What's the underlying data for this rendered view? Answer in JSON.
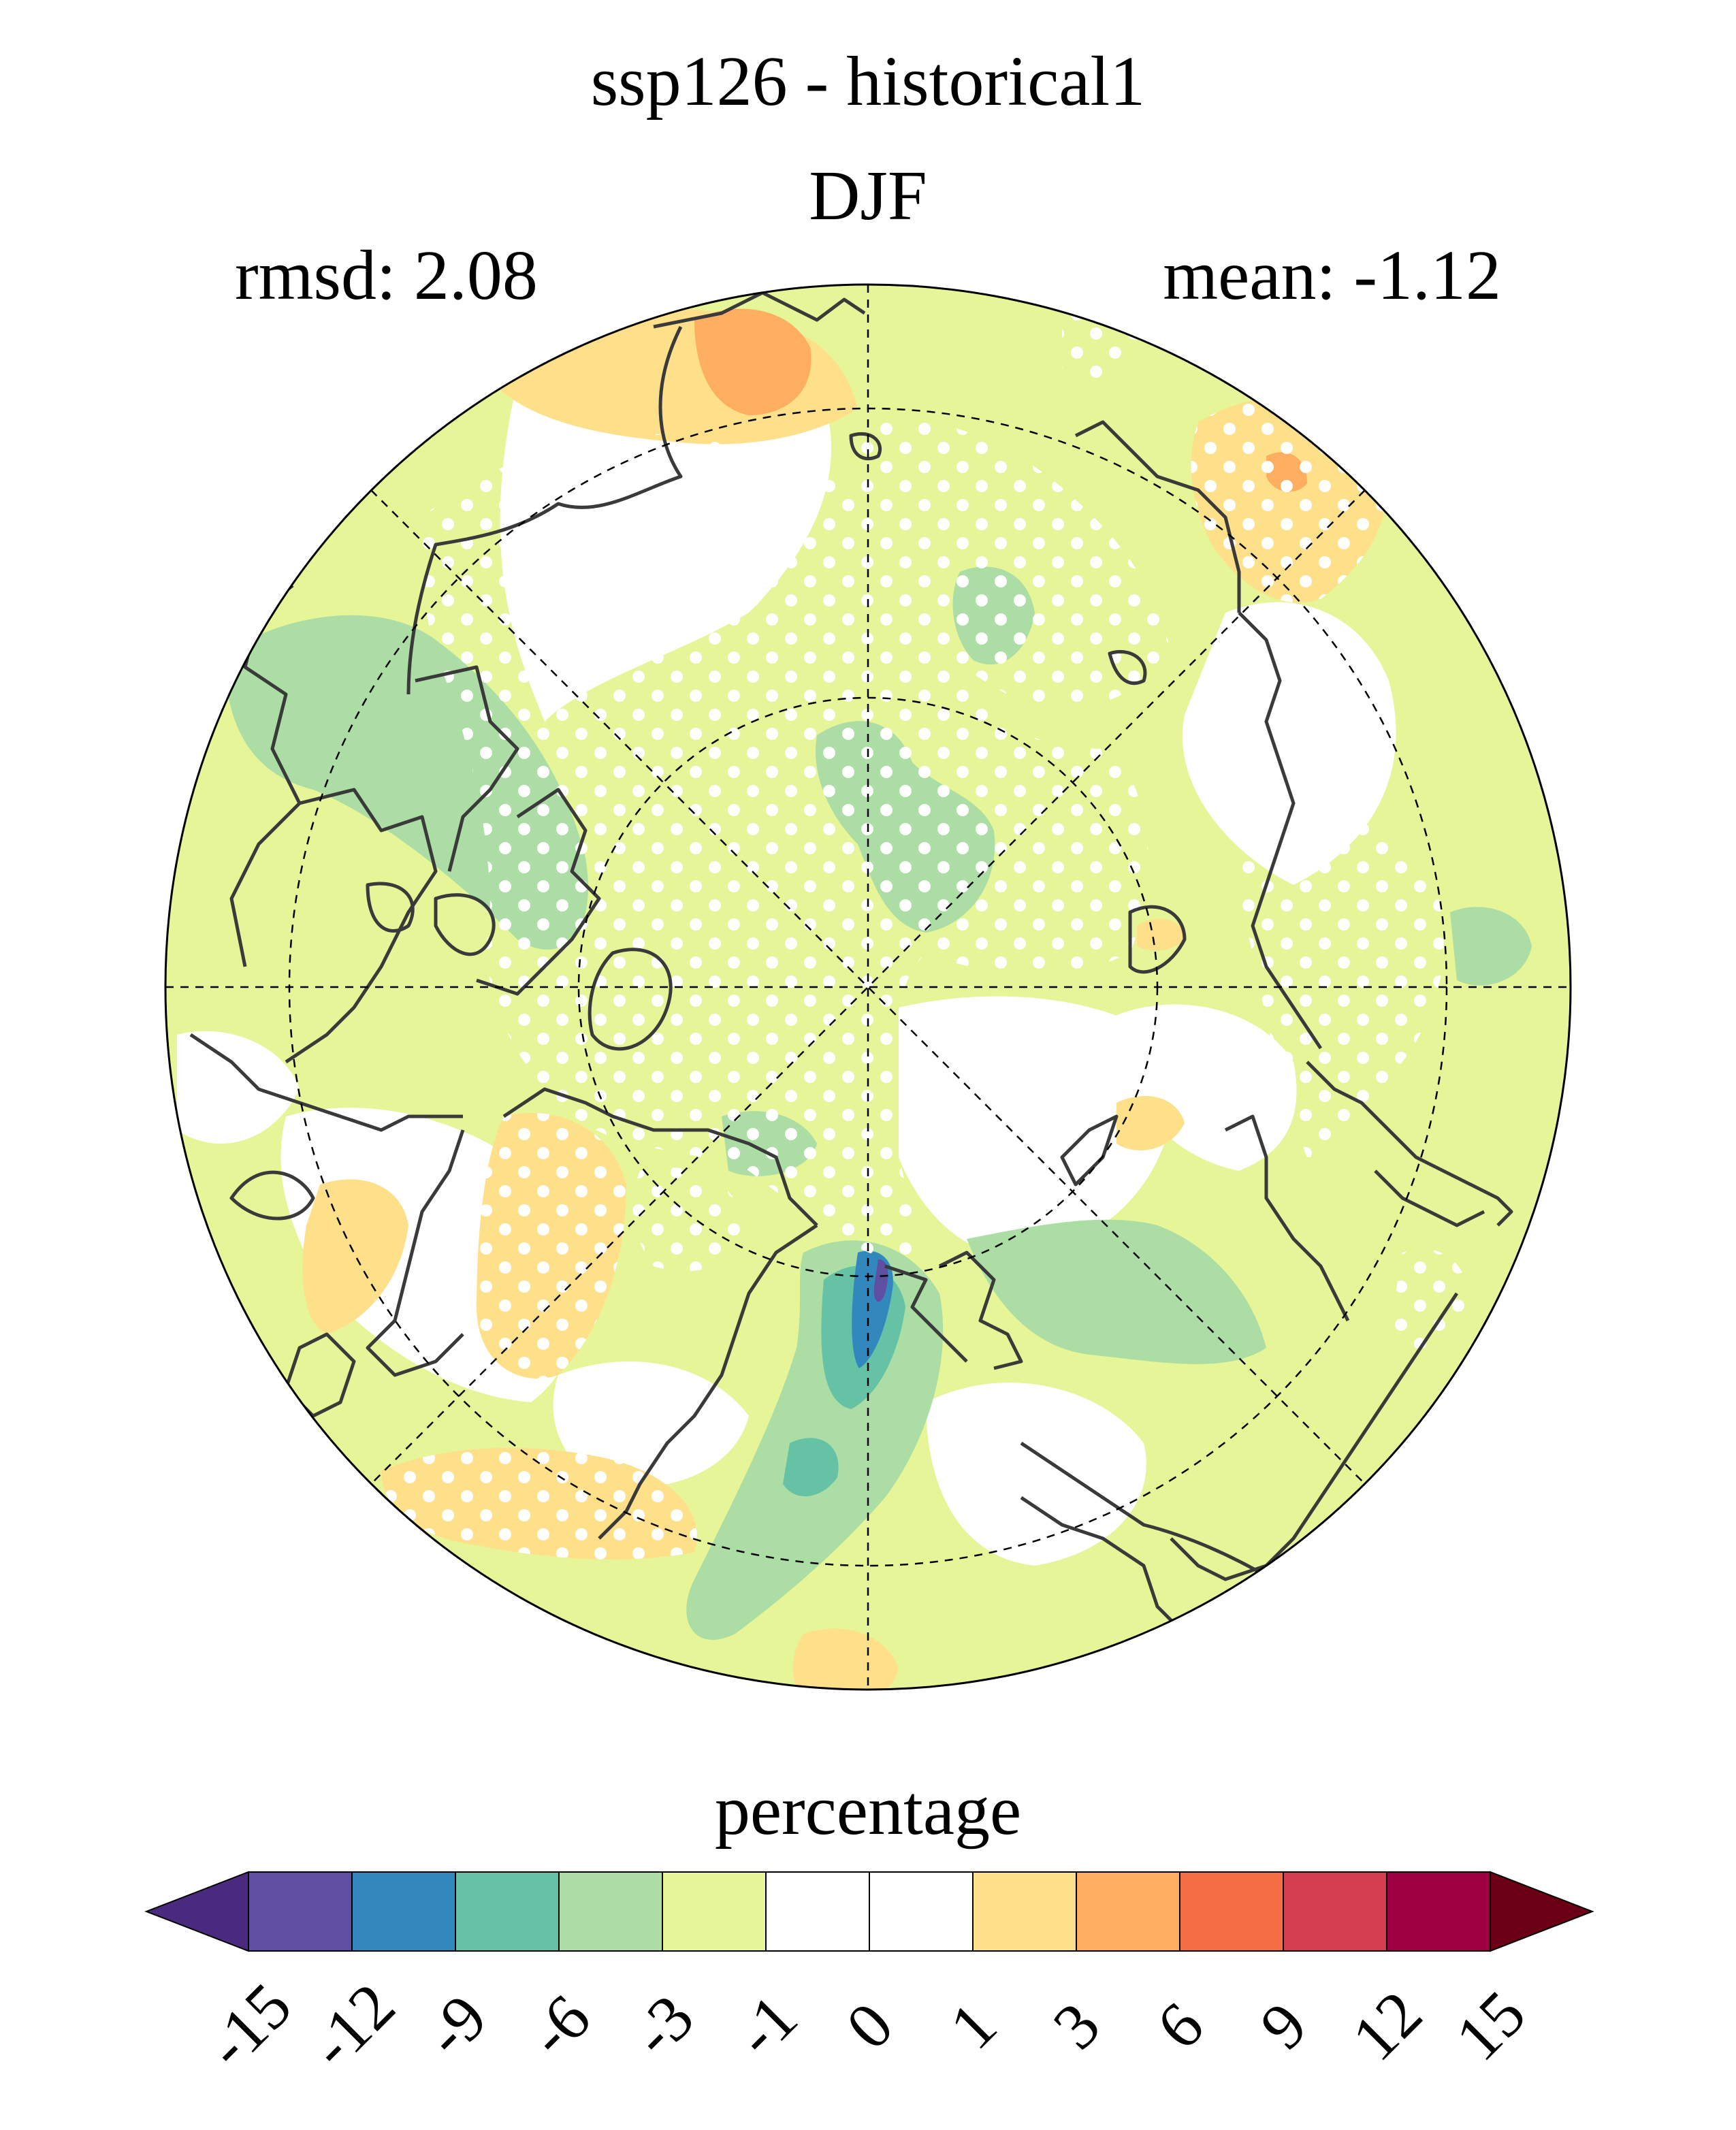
{
  "header": {
    "title": "ssp126 - historical1",
    "season": "DJF",
    "rmsd": "rmsd: 2.08",
    "mean": "mean: -1.12"
  },
  "colorbar": {
    "label": "percentage",
    "levels": [
      "-15",
      "-12",
      "-9",
      "-6",
      "-3",
      "-1",
      "0",
      "1",
      "3",
      "6",
      "9",
      "12",
      "15"
    ],
    "colors": [
      "#5e4fa2",
      "#3288bd",
      "#66c2a5",
      "#abdda4",
      "#e6f598",
      "#ffffff",
      "#ffffff",
      "#fee08b",
      "#fdae61",
      "#f46d43",
      "#d53e4f",
      "#9e0142"
    ],
    "under_color": "#4a2a7e",
    "over_color": "#6b0014"
  },
  "chart_data": {
    "type": "heatmap",
    "projection": "north-polar-stereographic",
    "title": "ssp126 - historical1",
    "subtitle": "DJF",
    "rmsd": 2.08,
    "mean": -1.12,
    "colorbar_label": "percentage",
    "colorbar_levels": [
      -15,
      -12,
      -9,
      -6,
      -3,
      -1,
      0,
      1,
      3,
      6,
      9,
      12,
      15
    ],
    "stippling": true,
    "coastlines": true,
    "graticule": true
  }
}
